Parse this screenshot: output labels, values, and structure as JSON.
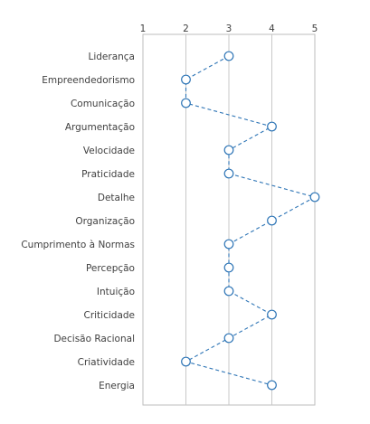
{
  "chart_data": {
    "type": "line",
    "orientation": "horizontal-values",
    "categories": [
      "Liderança",
      "Empreendedorismo",
      "Comunicação",
      "Argumentação",
      "Velocidade",
      "Praticidade",
      "Detalhe",
      "Organização",
      "Cumprimento à Normas",
      "Percepção",
      "Intuição",
      "Criticidade",
      "Decisão Racional",
      "Criatividade",
      "Energia"
    ],
    "values": [
      3,
      2,
      2,
      4,
      3,
      3,
      5,
      4,
      3,
      3,
      3,
      4,
      3,
      2,
      4
    ],
    "ticks": [
      "1",
      "2",
      "3",
      "4",
      "5"
    ],
    "xlim": [
      1,
      5
    ],
    "grid": true,
    "legend": "none",
    "marker": "circle",
    "line_style": "dashed",
    "colors": {
      "series": "#2e75b6",
      "grid": "#c8c8c8",
      "text": "#404040"
    }
  }
}
